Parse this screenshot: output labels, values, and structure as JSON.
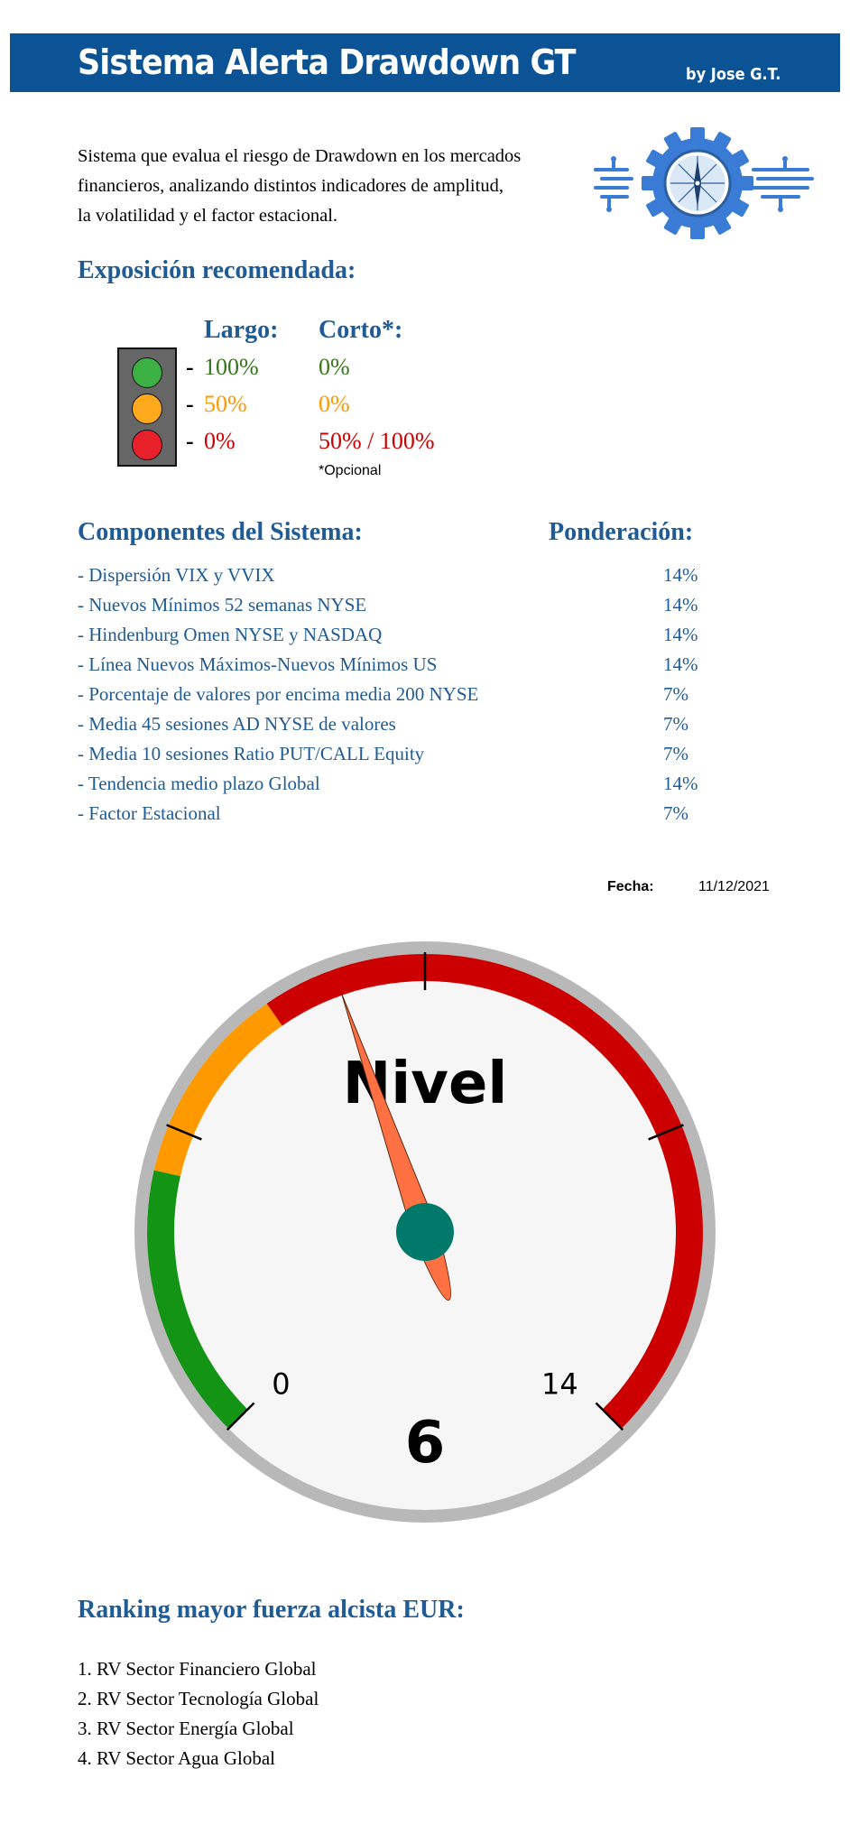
{
  "header": {
    "title": "Sistema Alerta Drawdown GT",
    "author": "by Jose G.T."
  },
  "intro": {
    "lines": [
      "Sistema que evalua el riesgo de Drawdown en los mercados",
      "financieros, analizando distintos indicadores de amplitud,",
      "la volatilidad y el factor estacional."
    ]
  },
  "exposure": {
    "title": "Exposición recomendada:",
    "long_header": "Largo:",
    "short_header": "Corto*:",
    "rows": [
      {
        "dash": "-",
        "long": "100%",
        "short": "0%",
        "color": "#38761d",
        "light": "#3cb043"
      },
      {
        "dash": "-",
        "long": "50%",
        "short": "0%",
        "color": "#ff9900",
        "light": "#ffaa1d"
      },
      {
        "dash": "-",
        "long": "0%",
        "short": "50% / 100%",
        "color": "#cc0000",
        "light": "#e8202a"
      }
    ],
    "note": "*Opcional"
  },
  "components": {
    "title": "Componentes del Sistema:",
    "weight_title": "Ponderación:",
    "items": [
      {
        "name": "- Dispersión VIX y VVIX",
        "weight": "14%"
      },
      {
        "name": "- Nuevos Mínimos 52 semanas NYSE",
        "weight": "14%"
      },
      {
        "name": "- Hindenburg Omen NYSE y NASDAQ",
        "weight": "14%"
      },
      {
        "name": "- Línea Nuevos Máximos-Nuevos Mínimos US",
        "weight": "14%"
      },
      {
        "name": "- Porcentaje de valores por encima media 200 NYSE",
        "weight": "7%"
      },
      {
        "name": "- Media 45 sesiones AD NYSE de valores",
        "weight": "7%"
      },
      {
        "name": "- Media 10 sesiones Ratio PUT/CALL Equity",
        "weight": "7%"
      },
      {
        "name": "- Tendencia medio plazo Global",
        "weight": "14%"
      },
      {
        "name": "- Factor Estacional",
        "weight": "7%"
      }
    ]
  },
  "date": {
    "label": "Fecha:",
    "value": "11/12/2021"
  },
  "gauge": {
    "title": "Nivel",
    "min_label": "0",
    "max_label": "14",
    "min": 0,
    "max": 14,
    "value": 6,
    "value_label": "6",
    "bands": [
      {
        "from": 0,
        "to": 3,
        "color": "#149414"
      },
      {
        "from": 3,
        "to": 5.2,
        "color": "#ff9900"
      },
      {
        "from": 5.2,
        "to": 14,
        "color": "#cc0000"
      }
    ],
    "needle_color": "#ff7043",
    "hub_color": "#00796b"
  },
  "ranking": {
    "title": "Ranking mayor fuerza alcista EUR:",
    "items": [
      "1. RV Sector Financiero Global",
      "2. RV Sector Tecnología Global",
      "3. RV Sector Energía Global",
      "4. RV Sector Agua Global"
    ]
  }
}
